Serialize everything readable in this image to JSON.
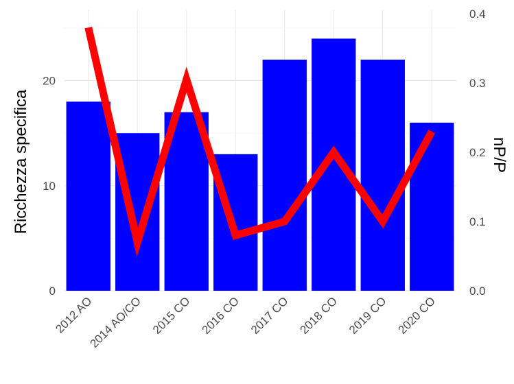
{
  "chart_data": {
    "type": "bar",
    "categories": [
      "2012 AO",
      "2014 AO/CO",
      "2015 CO",
      "2016 CO",
      "2017 CO",
      "2018 CO",
      "2019 CO",
      "2020 CO"
    ],
    "series": [
      {
        "type": "bar",
        "axis": "left",
        "color": "#0000ff",
        "values": [
          18,
          15,
          17,
          13,
          22,
          24,
          22,
          16
        ]
      },
      {
        "type": "line",
        "axis": "right",
        "color": "#ff0000",
        "values": [
          0.38,
          0.07,
          0.305,
          0.08,
          0.1,
          0.2,
          0.1,
          0.23
        ]
      }
    ],
    "ylabel": "Ricchezza specifica",
    "y2label": "nP/P",
    "ylim": [
      0,
      25
    ],
    "y2lim": [
      0,
      0.4
    ],
    "yticks": [
      "0",
      "10",
      "20"
    ],
    "y2ticks": [
      "0.0",
      "0.1",
      "0.2",
      "0.3",
      "0.4"
    ],
    "grid": true,
    "legend": "none"
  }
}
